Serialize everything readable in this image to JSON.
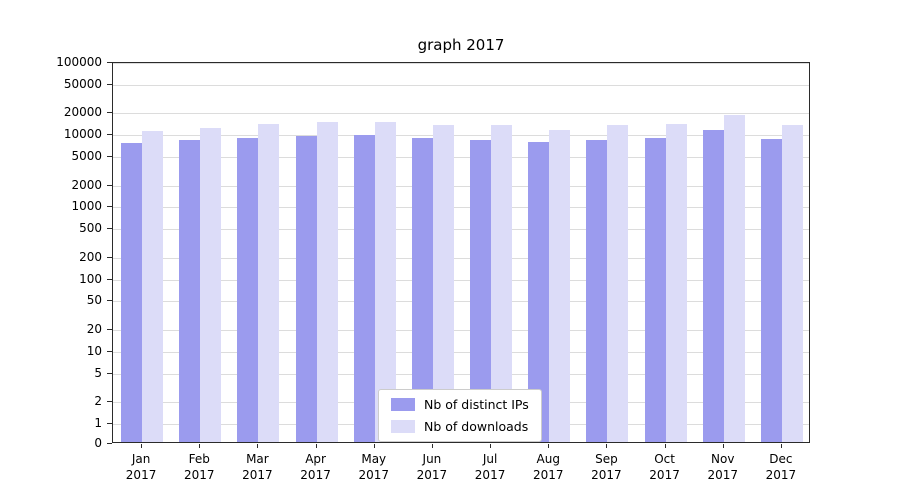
{
  "chart_data": {
    "type": "bar",
    "title": "graph 2017",
    "categories": [
      "Jan 2017",
      "Feb 2017",
      "Mar 2017",
      "Apr 2017",
      "May 2017",
      "Jun 2017",
      "Jul 2017",
      "Aug 2017",
      "Sep 2017",
      "Oct 2017",
      "Nov 2017",
      "Dec 2017"
    ],
    "series": [
      {
        "name": "Nb of distinct IPs",
        "color": "#9b9bee",
        "values": [
          7300,
          8000,
          8700,
          9200,
          9400,
          8500,
          8100,
          7600,
          8100,
          8700,
          11000,
          8300
        ]
      },
      {
        "name": "Nb of downloads",
        "color": "#dcdcf8",
        "values": [
          10800,
          11800,
          13500,
          14500,
          14500,
          12800,
          13200,
          11200,
          12800,
          13500,
          18000,
          12800
        ]
      }
    ],
    "yticks": [
      0,
      1,
      2,
      5,
      10,
      20,
      50,
      100,
      200,
      500,
      1000,
      2000,
      5000,
      10000,
      20000,
      50000,
      100000
    ],
    "yscale": "log",
    "ylim": [
      0,
      100000
    ],
    "grid": "horizontal",
    "grid_color": "#dcdcdc",
    "axis_color": "#2b2b2b",
    "legend_position": "bottom-center"
  }
}
